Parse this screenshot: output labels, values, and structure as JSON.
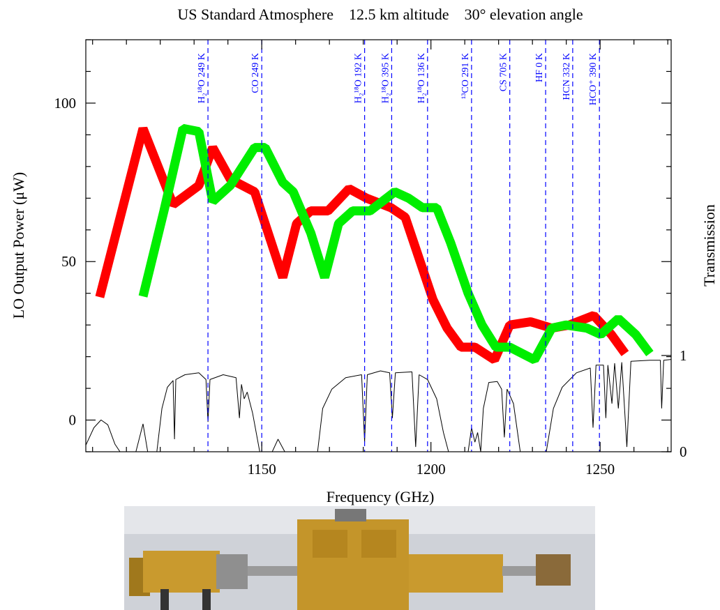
{
  "chart_data": {
    "type": "line",
    "title": "US Standard Atmosphere    12.5 km altitude    30° elevation angle",
    "xlabel": "Frequency (GHz)",
    "ylabel": "LO Output Power (μW)",
    "y2label": "Transmission",
    "xlim": [
      1098,
      1271
    ],
    "ylim": [
      -10,
      120
    ],
    "y2lim": [
      0,
      4.28
    ],
    "xticks": [
      1150,
      1200,
      1250
    ],
    "yticks": [
      0,
      50,
      100
    ],
    "y2ticks": [
      0,
      1
    ],
    "xticks_minor": [
      1100,
      1110,
      1120,
      1130,
      1140,
      1160,
      1170,
      1180,
      1190,
      1210,
      1220,
      1230,
      1240,
      1260,
      1270
    ],
    "yticks_minor": [
      -10,
      10,
      20,
      30,
      40,
      60,
      70,
      80,
      90,
      110,
      120
    ],
    "series": [
      {
        "color": "#ff0000",
        "x": [
          1102.1,
          1114.9,
          1123.8,
          1131.4,
          1135.5,
          1140.7,
          1147.9,
          1156.2,
          1160.3,
          1164.5,
          1169.6,
          1175.8,
          1181.0,
          1188.2,
          1192.4,
          1200.6,
          1204.8,
          1208.9,
          1213.0,
          1218.8,
          1223.3,
          1229.5,
          1235.7,
          1240.9,
          1248.1,
          1253.3,
          1257.4
        ],
        "values": [
          38.8,
          92,
          68,
          74,
          86,
          76,
          72,
          45,
          62,
          66,
          66,
          73,
          70,
          67,
          64,
          38,
          29,
          23,
          23,
          19,
          30,
          31,
          29,
          30,
          33,
          27,
          21
        ]
      },
      {
        "color": "#00ee00",
        "x": [
          1114.9,
          1121.1,
          1126.7,
          1131.4,
          1135.5,
          1140.7,
          1147.9,
          1151.0,
          1156.2,
          1159.3,
          1164.5,
          1168.6,
          1172.7,
          1176.9,
          1182.0,
          1189.3,
          1193.4,
          1197.5,
          1201.7,
          1205.8,
          1211.0,
          1215.1,
          1219.2,
          1223.3,
          1230.6,
          1235.7,
          1239.9,
          1246.1,
          1250.2,
          1255.4,
          1260.5,
          1264.7
        ],
        "values": [
          39,
          66,
          92,
          91,
          69,
          74,
          86,
          86,
          75,
          72,
          59,
          45,
          62,
          66,
          66,
          72,
          70,
          67,
          67,
          56,
          40,
          30,
          23,
          23,
          19,
          29,
          30,
          29,
          27,
          32,
          27,
          21
        ]
      },
      {
        "color": "#000000",
        "axis": "y2",
        "x": [
          1097.9,
          1100.4,
          1102.5,
          1104.5,
          1106.6,
          1108.1,
          1112.8,
          1114.9,
          1116.3,
          1119.0,
          1120.5,
          1122.1,
          1123.8,
          1124.2,
          1124.6,
          1127.3,
          1131.4,
          1133.5,
          1134.1,
          1134.7,
          1138.6,
          1142.4,
          1143.4,
          1144.0,
          1144.8,
          1145.7,
          1147.3,
          1149.4,
          1153.1,
          1154.8,
          1156.8,
          1166.5,
          1168.0,
          1170.7,
          1174.8,
          1179.5,
          1180.4,
          1181.2,
          1185.1,
          1187.8,
          1188.6,
          1189.5,
          1194.4,
          1195.5,
          1196.5,
          1199.0,
          1201.7,
          1203.7,
          1205.2,
          1211.0,
          1212.0,
          1213.0,
          1213.8,
          1214.7,
          1215.5,
          1217.1,
          1219.6,
          1220.9,
          1221.7,
          1222.5,
          1224.4,
          1226.4,
          1234.1,
          1236.2,
          1238.8,
          1243.0,
          1247.1,
          1247.9,
          1248.8,
          1251.0,
          1251.7,
          1252.3,
          1253.5,
          1254.3,
          1255.4,
          1256.4,
          1257.9,
          1259.1,
          1264.7,
          1267.8,
          1268.2,
          1268.8,
          1271.3
        ],
        "values": [
          0.06,
          0.25,
          0.33,
          0.28,
          0.08,
          0,
          0,
          0.29,
          0,
          0,
          0.45,
          0.67,
          0.74,
          0.13,
          0.75,
          0.8,
          0.82,
          0.75,
          0.31,
          0.75,
          0.8,
          0.77,
          0.35,
          0.7,
          0.55,
          0.62,
          0.4,
          0,
          0,
          0.13,
          0,
          0,
          0.45,
          0.65,
          0.77,
          0.8,
          0.1,
          0.8,
          0.84,
          0.82,
          0.35,
          0.82,
          0.83,
          0.05,
          0.8,
          0.75,
          0.55,
          0.2,
          0,
          0,
          0.25,
          0.1,
          0.2,
          0,
          0.45,
          0.72,
          0.73,
          0.65,
          0.15,
          0.65,
          0.5,
          0,
          0,
          0.45,
          0.67,
          0.82,
          0.87,
          0.25,
          0.9,
          0.9,
          0.35,
          0.9,
          0.5,
          0.92,
          0.45,
          0.93,
          0.05,
          0.94,
          0.95,
          0.95,
          0.45,
          0.95,
          0.96
        ]
      }
    ],
    "lines_color": "#0000ff",
    "lines": [
      {
        "x": 1134.1,
        "label": "H₂¹⁸O 249 K"
      },
      {
        "x": 1150.0,
        "label": "CO 249 K"
      },
      {
        "x": 1180.4,
        "label": "H₂¹⁸O 192 K"
      },
      {
        "x": 1188.4,
        "label": "H₂¹⁸O 395 K"
      },
      {
        "x": 1199.0,
        "label": "H₂¹⁸O 136 K"
      },
      {
        "x": 1212.0,
        "label": "¹³CO 291 K"
      },
      {
        "x": 1223.3,
        "label": "CS 705 K"
      },
      {
        "x": 1233.9,
        "label": "HF 0 K"
      },
      {
        "x": 1241.9,
        "label": "HCN 332 K"
      },
      {
        "x": 1249.8,
        "label": "HCO⁺ 390 K"
      }
    ]
  }
}
